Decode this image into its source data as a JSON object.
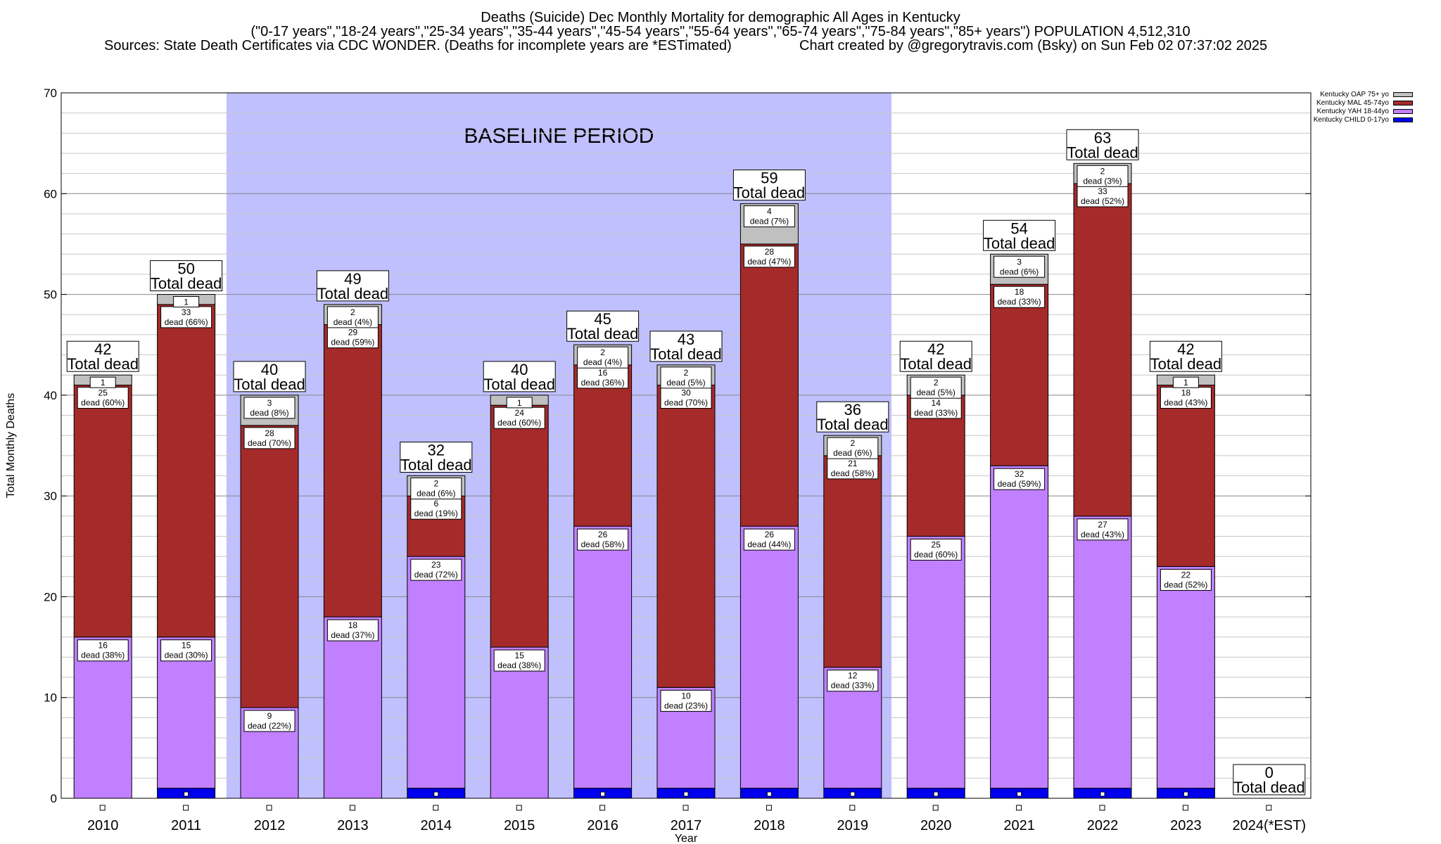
{
  "header": {
    "title": "Deaths (Suicide) Dec Monthly Mortality for demographic All Ages in Kentucky",
    "subtitle": "(\"0-17 years\",\"18-24 years\",\"25-34 years\",\"35-44 years\",\"45-54 years\",\"55-64 years\",\"65-74 years\",\"75-84 years\",\"85+ years\") POPULATION 4,512,310",
    "sources": "Sources: State Death Certificates via CDC WONDER. (Deaths for incomplete years are *ESTimated)",
    "credit": "Chart created by @gregorytravis.com (Bsky) on Sun Feb 02 07:37:02 2025"
  },
  "chart_data": {
    "type": "bar",
    "stacked": true,
    "xlabel": "Year",
    "ylabel": "Total Monthly Deaths",
    "ylim": [
      0,
      70
    ],
    "yticks": [
      0,
      10,
      20,
      30,
      40,
      50,
      60,
      70
    ],
    "grid": true,
    "legend_position": "top-right",
    "categories": [
      "2010",
      "2011",
      "2012",
      "2013",
      "2014",
      "2015",
      "2016",
      "2017",
      "2018",
      "2019",
      "2020",
      "2021",
      "2022",
      "2023",
      "2024(*EST)"
    ],
    "series": [
      {
        "name": "Kentucky CHILD 0-17yo",
        "color": "#0000ee",
        "values": [
          0,
          1,
          0,
          0,
          1,
          0,
          1,
          1,
          1,
          1,
          1,
          1,
          1,
          1,
          0
        ]
      },
      {
        "name": "Kentucky YAH 18-44yo",
        "color": "#c080ff",
        "values": [
          16,
          15,
          9,
          18,
          23,
          15,
          26,
          10,
          26,
          12,
          25,
          32,
          27,
          22,
          0
        ]
      },
      {
        "name": "Kentucky MAL 45-74yo",
        "color": "#a52a2a",
        "values": [
          25,
          33,
          28,
          29,
          6,
          24,
          16,
          30,
          28,
          21,
          14,
          18,
          33,
          18,
          0
        ]
      },
      {
        "name": "Kentucky OAP 75+ yo",
        "color": "#c0c0c0",
        "values": [
          1,
          1,
          3,
          2,
          2,
          1,
          2,
          2,
          4,
          2,
          2,
          3,
          2,
          1,
          0
        ]
      }
    ],
    "totals": [
      42,
      50,
      40,
      49,
      32,
      40,
      45,
      43,
      59,
      36,
      42,
      54,
      63,
      42,
      0
    ],
    "total_suffix": "Total dead",
    "segment_labels": {
      "yah": [
        "16\ndead (38%)",
        "15\ndead (30%)",
        "9\ndead (22%)",
        "18\ndead (37%)",
        "23\ndead (72%)",
        "15\ndead (38%)",
        "26\ndead (58%)",
        "10\ndead (23%)",
        "26\ndead (44%)",
        "12\ndead (33%)",
        "25\ndead (60%)",
        "32\ndead (59%)",
        "27\ndead (43%)",
        "22\ndead (52%)",
        ""
      ],
      "mal": [
        "25\ndead (60%)",
        "33\ndead (66%)",
        "28\ndead (70%)",
        "29\ndead (59%)",
        "6\ndead (19%)",
        "24\ndead (60%)",
        "16\ndead (36%)",
        "30\ndead (70%)",
        "28\ndead (47%)",
        "21\ndead (58%)",
        "14\ndead (33%)",
        "18\ndead (33%)",
        "33\ndead (52%)",
        "18\ndead (43%)",
        ""
      ],
      "oap": [
        "1",
        "1",
        "3\ndead (8%)",
        "2\ndead (4%)",
        "2\ndead (6%)",
        "1",
        "2\ndead (4%)",
        "2\ndead (5%)",
        "4\ndead (7%)",
        "2\ndead (6%)",
        "2\ndead (5%)",
        "3\ndead (6%)",
        "2\ndead (3%)",
        "1",
        ""
      ]
    },
    "annotations": [
      {
        "text": "BASELINE PERIOD",
        "x_from": "2012",
        "x_to": "2019",
        "color": "#c0c0ff"
      }
    ]
  },
  "legend_order": [
    3,
    2,
    1,
    0
  ]
}
